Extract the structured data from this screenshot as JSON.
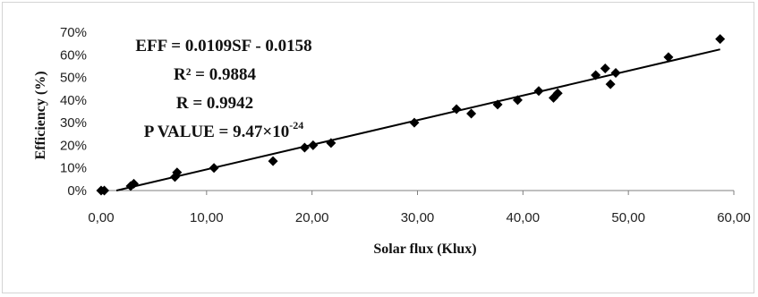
{
  "chart_data": {
    "type": "scatter",
    "xlabel": "Solar flux (Klux)",
    "ylabel": "Efficiency (%)",
    "xlim": [
      0,
      60
    ],
    "ylim": [
      0,
      0.7
    ],
    "x_ticks": [
      "0,00",
      "10,00",
      "20,00",
      "30,00",
      "40,00",
      "50,00",
      "60,00"
    ],
    "y_ticks": [
      "0%",
      "10%",
      "20%",
      "30%",
      "40%",
      "50%",
      "60%",
      "70%"
    ],
    "grid": false,
    "legend": "none",
    "marker": "diamond",
    "color": "#000000",
    "points": [
      {
        "x": 0.0,
        "y": 0.0
      },
      {
        "x": 0.3,
        "y": 0.0
      },
      {
        "x": 2.8,
        "y": 0.02
      },
      {
        "x": 3.1,
        "y": 0.03
      },
      {
        "x": 7.0,
        "y": 0.06
      },
      {
        "x": 7.2,
        "y": 0.08
      },
      {
        "x": 10.7,
        "y": 0.1
      },
      {
        "x": 16.3,
        "y": 0.13
      },
      {
        "x": 19.3,
        "y": 0.19
      },
      {
        "x": 20.1,
        "y": 0.2
      },
      {
        "x": 21.8,
        "y": 0.21
      },
      {
        "x": 29.7,
        "y": 0.3
      },
      {
        "x": 33.7,
        "y": 0.36
      },
      {
        "x": 35.1,
        "y": 0.34
      },
      {
        "x": 37.6,
        "y": 0.38
      },
      {
        "x": 39.5,
        "y": 0.4
      },
      {
        "x": 41.5,
        "y": 0.44
      },
      {
        "x": 42.9,
        "y": 0.41
      },
      {
        "x": 43.3,
        "y": 0.43
      },
      {
        "x": 46.9,
        "y": 0.51
      },
      {
        "x": 47.8,
        "y": 0.54
      },
      {
        "x": 48.3,
        "y": 0.47
      },
      {
        "x": 48.8,
        "y": 0.52
      },
      {
        "x": 53.8,
        "y": 0.59
      },
      {
        "x": 58.7,
        "y": 0.67
      }
    ],
    "trendline": {
      "slope": 0.0109,
      "intercept": -0.0158,
      "x_range": [
        1.45,
        58.7
      ]
    },
    "annotations": {
      "equation": "EFF = 0.0109SF - 0.0158",
      "r2_label": "R²",
      "r2_value": " = 0.9884",
      "r": "R = 0.9942",
      "p_label": "P VALUE = 9.47×10",
      "p_exponent": "-24"
    }
  }
}
